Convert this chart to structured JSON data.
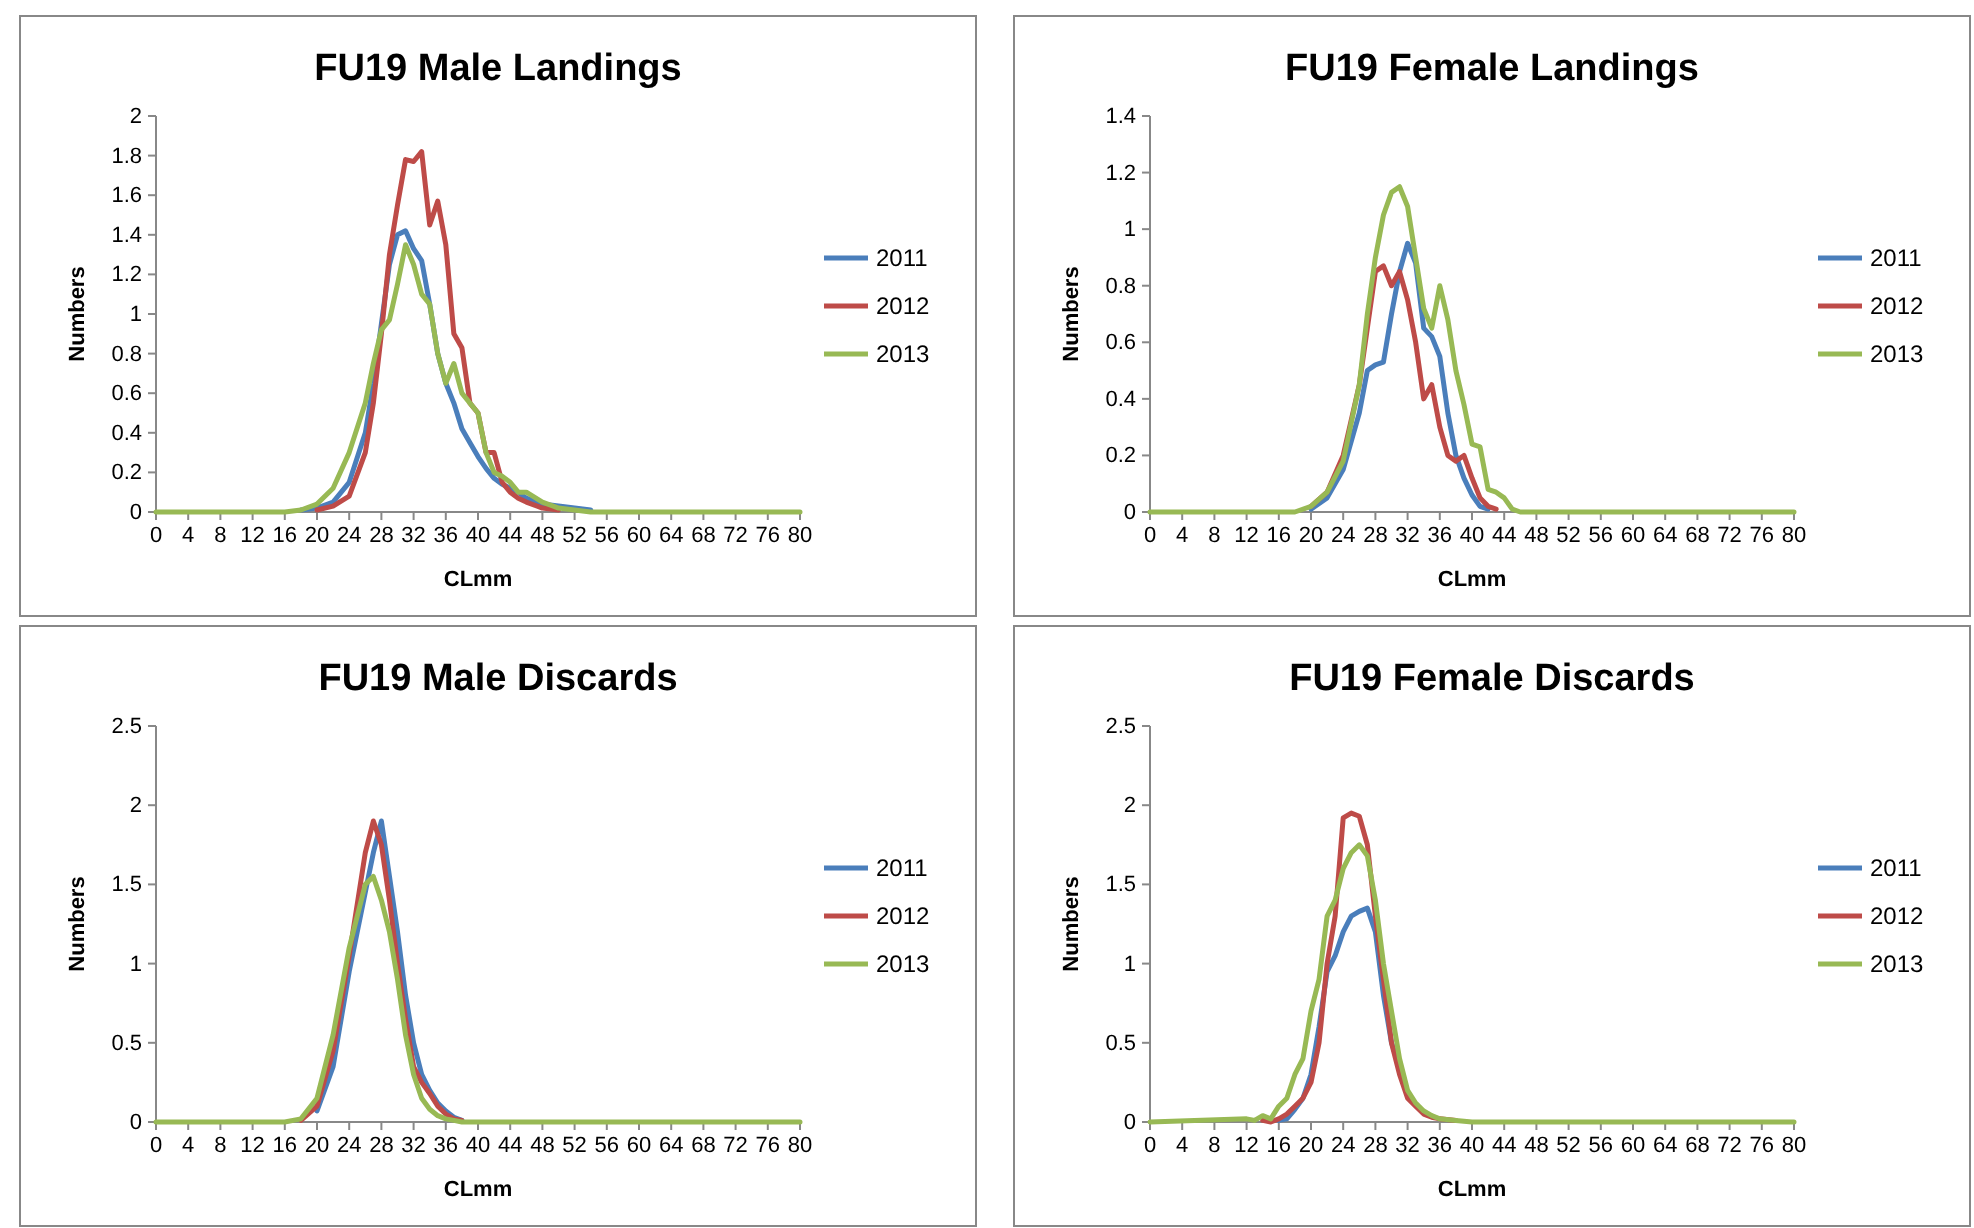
{
  "chart_data": [
    {
      "type": "line",
      "title": "FU19 Male Landings",
      "xlabel": "CLmm",
      "ylabel": "Numbers",
      "legend": "right",
      "grid": false,
      "xlim": [
        0,
        80
      ],
      "xticks": [
        0,
        4,
        8,
        12,
        16,
        20,
        24,
        28,
        32,
        36,
        40,
        44,
        48,
        52,
        56,
        60,
        64,
        68,
        72,
        76,
        80
      ],
      "ylim": [
        0,
        2
      ],
      "yticks": [
        0,
        0.2,
        0.4,
        0.6,
        0.8,
        1,
        1.2,
        1.4,
        1.6,
        1.8,
        2
      ],
      "x": [
        0,
        16,
        18,
        20,
        22,
        24,
        26,
        27,
        28,
        29,
        30,
        31,
        32,
        33,
        34,
        35,
        36,
        37,
        38,
        39,
        40,
        41,
        42,
        43,
        44,
        45,
        46,
        48,
        50,
        52,
        54,
        56,
        80
      ],
      "series": [
        {
          "name": "2011",
          "color": "#4a7ebb",
          "values": [
            null,
            null,
            0.01,
            0.02,
            0.05,
            0.15,
            0.4,
            0.65,
            0.95,
            1.25,
            1.4,
            1.42,
            1.33,
            1.27,
            1.05,
            0.8,
            0.65,
            0.55,
            0.42,
            0.35,
            0.28,
            0.22,
            0.17,
            0.14,
            0.12,
            0.1,
            0.07,
            0.04,
            0.03,
            0.02,
            0.01,
            null,
            null
          ]
        },
        {
          "name": "2012",
          "color": "#be4b48",
          "values": [
            null,
            null,
            null,
            0.01,
            0.03,
            0.08,
            0.3,
            0.55,
            0.9,
            1.3,
            1.55,
            1.78,
            1.77,
            1.82,
            1.45,
            1.57,
            1.35,
            0.9,
            0.83,
            0.55,
            0.5,
            0.3,
            0.3,
            0.15,
            0.1,
            0.07,
            0.05,
            0.02,
            0.01,
            null,
            null,
            null,
            null
          ]
        },
        {
          "name": "2013",
          "color": "#98b954",
          "values": [
            0,
            0,
            0.01,
            0.04,
            0.12,
            0.3,
            0.55,
            0.75,
            0.92,
            0.97,
            1.15,
            1.35,
            1.25,
            1.1,
            1.05,
            0.8,
            0.65,
            0.75,
            0.6,
            0.55,
            0.5,
            0.3,
            0.2,
            0.18,
            0.15,
            0.1,
            0.1,
            0.05,
            0.02,
            0.01,
            0,
            0,
            0
          ]
        }
      ]
    },
    {
      "type": "line",
      "title": "FU19 Female Landings",
      "xlabel": "CLmm",
      "ylabel": "Numbers",
      "legend": "right",
      "grid": false,
      "xlim": [
        0,
        80
      ],
      "xticks": [
        0,
        4,
        8,
        12,
        16,
        20,
        24,
        28,
        32,
        36,
        40,
        44,
        48,
        52,
        56,
        60,
        64,
        68,
        72,
        76,
        80
      ],
      "ylim": [
        0,
        1.4
      ],
      "yticks": [
        0,
        0.2,
        0.4,
        0.6,
        0.8,
        1,
        1.2,
        1.4
      ],
      "x": [
        0,
        16,
        18,
        20,
        22,
        24,
        26,
        27,
        28,
        29,
        30,
        31,
        32,
        33,
        34,
        35,
        36,
        37,
        38,
        39,
        40,
        41,
        42,
        43,
        44,
        45,
        46,
        48,
        50,
        52,
        54,
        56,
        80
      ],
      "series": [
        {
          "name": "2011",
          "color": "#4a7ebb",
          "values": [
            null,
            null,
            null,
            0.01,
            0.05,
            0.15,
            0.35,
            0.5,
            0.52,
            0.53,
            0.7,
            0.85,
            0.95,
            0.88,
            0.65,
            0.62,
            0.55,
            0.35,
            0.2,
            0.12,
            0.06,
            0.02,
            0.01,
            null,
            null,
            null,
            null,
            null,
            null,
            null,
            null,
            null,
            null
          ]
        },
        {
          "name": "2012",
          "color": "#be4b48",
          "values": [
            null,
            null,
            null,
            0.02,
            0.07,
            0.2,
            0.45,
            0.65,
            0.85,
            0.87,
            0.8,
            0.85,
            0.75,
            0.6,
            0.4,
            0.45,
            0.3,
            0.2,
            0.18,
            0.2,
            0.12,
            0.05,
            0.02,
            0.01,
            null,
            null,
            null,
            null,
            null,
            null,
            null,
            null,
            null
          ]
        },
        {
          "name": "2013",
          "color": "#98b954",
          "values": [
            0,
            0,
            0,
            0.02,
            0.07,
            0.18,
            0.45,
            0.7,
            0.9,
            1.05,
            1.13,
            1.15,
            1.08,
            0.9,
            0.72,
            0.65,
            0.8,
            0.68,
            0.5,
            0.38,
            0.24,
            0.23,
            0.08,
            0.07,
            0.05,
            0.01,
            0,
            0,
            0,
            0,
            0,
            0,
            0
          ]
        }
      ]
    },
    {
      "type": "line",
      "title": "FU19 Male Discards",
      "xlabel": "CLmm",
      "ylabel": "Numbers",
      "legend": "right",
      "grid": false,
      "xlim": [
        0,
        80
      ],
      "xticks": [
        0,
        4,
        8,
        12,
        16,
        20,
        24,
        28,
        32,
        36,
        40,
        44,
        48,
        52,
        56,
        60,
        64,
        68,
        72,
        76,
        80
      ],
      "ylim": [
        0,
        2.5
      ],
      "yticks": [
        0,
        0.5,
        1,
        1.5,
        2,
        2.5
      ],
      "x": [
        0,
        16,
        18,
        20,
        22,
        24,
        26,
        27,
        28,
        29,
        30,
        31,
        32,
        33,
        34,
        35,
        36,
        37,
        38,
        39,
        40,
        41,
        42,
        43,
        44,
        45,
        46,
        48,
        50,
        52,
        54,
        56,
        80
      ],
      "series": [
        {
          "name": "2011",
          "color": "#4a7ebb",
          "values": [
            null,
            null,
            null,
            0.07,
            0.35,
            0.95,
            1.45,
            1.7,
            1.9,
            1.55,
            1.2,
            0.8,
            0.5,
            0.3,
            0.2,
            0.12,
            0.07,
            0.03,
            0.01,
            null,
            null,
            null,
            null,
            null,
            null,
            null,
            null,
            null,
            null,
            null,
            null,
            null,
            null
          ]
        },
        {
          "name": "2012",
          "color": "#be4b48",
          "values": [
            null,
            null,
            0.01,
            0.1,
            0.45,
            1.05,
            1.7,
            1.9,
            1.75,
            1.4,
            1,
            0.65,
            0.35,
            0.25,
            0.18,
            0.1,
            0.05,
            0.02,
            0.01,
            null,
            null,
            null,
            null,
            null,
            null,
            null,
            null,
            null,
            null,
            null,
            null,
            null,
            null
          ]
        },
        {
          "name": "2013",
          "color": "#98b954",
          "values": [
            0,
            0,
            0.02,
            0.15,
            0.55,
            1.1,
            1.5,
            1.55,
            1.4,
            1.2,
            0.9,
            0.55,
            0.3,
            0.15,
            0.08,
            0.04,
            0.02,
            0.01,
            0,
            0,
            0,
            0,
            0,
            0,
            0,
            0,
            0,
            0,
            0,
            0,
            0,
            0,
            0
          ]
        }
      ]
    },
    {
      "type": "line",
      "title": "FU19 Female Discards",
      "xlabel": "CLmm",
      "ylabel": "Numbers",
      "legend": "right",
      "grid": false,
      "xlim": [
        0,
        80
      ],
      "xticks": [
        0,
        4,
        8,
        12,
        16,
        20,
        24,
        28,
        32,
        36,
        40,
        44,
        48,
        52,
        56,
        60,
        64,
        68,
        72,
        76,
        80
      ],
      "ylim": [
        0,
        2.5
      ],
      "yticks": [
        0,
        0.5,
        1,
        1.5,
        2,
        2.5
      ],
      "x": [
        0,
        12,
        13,
        14,
        15,
        16,
        17,
        18,
        19,
        20,
        21,
        22,
        23,
        24,
        25,
        26,
        27,
        28,
        29,
        30,
        31,
        32,
        33,
        34,
        35,
        36,
        38,
        40,
        42,
        80
      ],
      "series": [
        {
          "name": "2011",
          "color": "#4a7ebb",
          "values": [
            null,
            null,
            null,
            null,
            null,
            0.01,
            0.02,
            0.08,
            0.15,
            0.3,
            0.6,
            0.95,
            1.05,
            1.2,
            1.3,
            1.33,
            1.35,
            1.2,
            0.8,
            0.5,
            0.35,
            null,
            null,
            null,
            null,
            null,
            null,
            null,
            null,
            null
          ]
        },
        {
          "name": "2012",
          "color": "#be4b48",
          "values": [
            null,
            null,
            null,
            0.01,
            0,
            0.02,
            0.05,
            0.1,
            0.15,
            0.25,
            0.5,
            1,
            1.3,
            1.92,
            1.95,
            1.93,
            1.75,
            1.3,
            0.9,
            0.5,
            0.3,
            0.15,
            0.1,
            0.05,
            0.03,
            0.02,
            0.01,
            null,
            null,
            null
          ]
        },
        {
          "name": "2013",
          "color": "#98b954",
          "values": [
            0,
            0.02,
            0.01,
            0.04,
            0.02,
            0.1,
            0.15,
            0.3,
            0.4,
            0.7,
            0.9,
            1.3,
            1.4,
            1.6,
            1.7,
            1.75,
            1.68,
            1.4,
            1,
            0.7,
            0.4,
            0.2,
            0.12,
            0.07,
            0.04,
            0.02,
            0.01,
            0,
            0,
            0
          ]
        }
      ]
    }
  ]
}
